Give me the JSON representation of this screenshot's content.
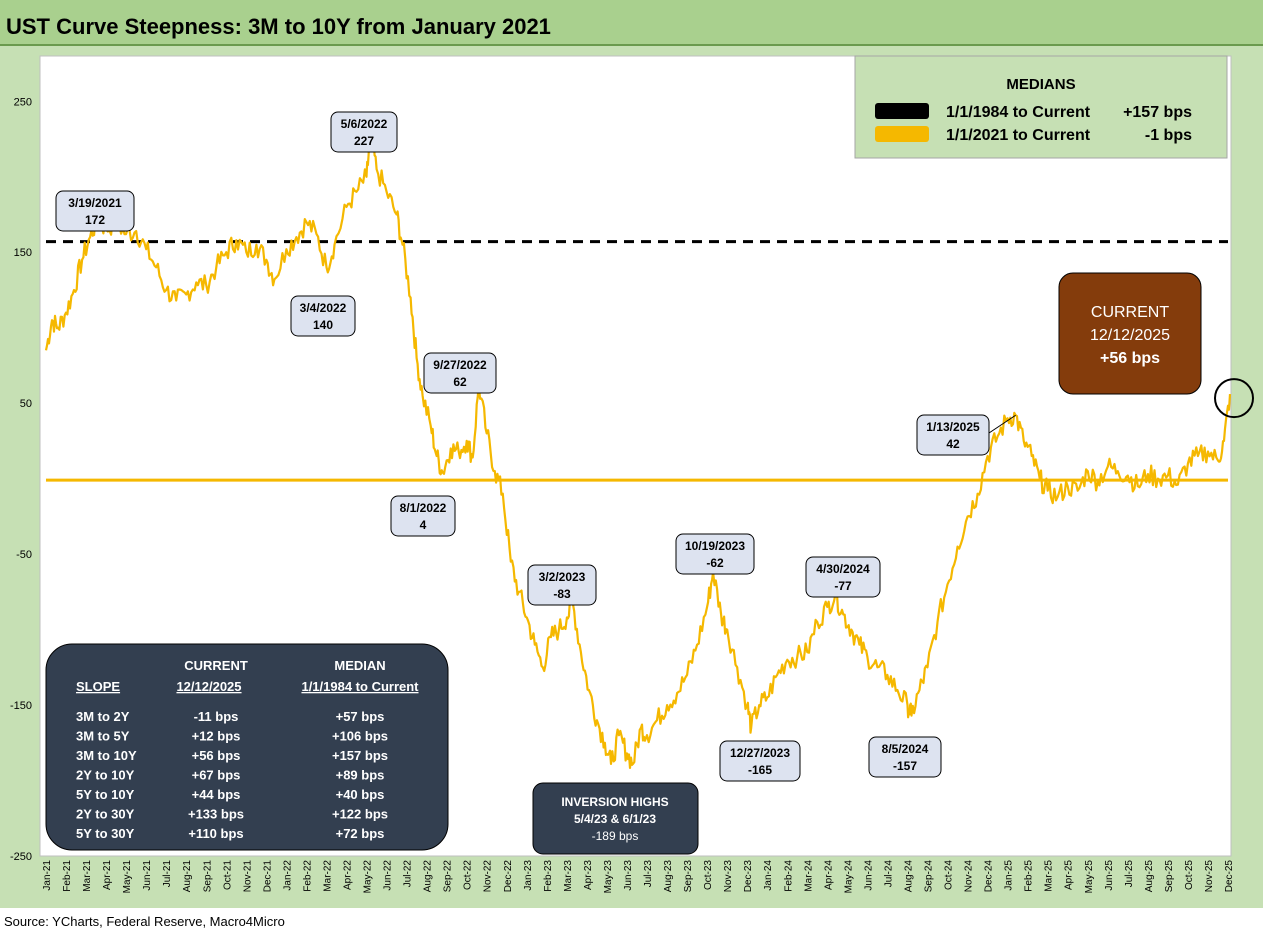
{
  "title": "UST Curve Steepness: 3M to 10Y from January 2021",
  "source": "Source: YCharts, Federal Reserve, Macro4Micro",
  "colors": {
    "series": "#f5b800",
    "median_2021": "#f5b800",
    "median_1984": "#000000",
    "panel": "#c6e0b4",
    "callout_fill": "#dde3f0",
    "current_box": "#843c0c",
    "dark_box": "#333f50"
  },
  "chart_data": {
    "type": "line",
    "ylim": [
      -250,
      280
    ],
    "yticks": [
      250,
      150,
      50,
      -50,
      -150,
      -250
    ],
    "x_months": [
      "Jan-21",
      "Feb-21",
      "Mar-21",
      "Apr-21",
      "May-21",
      "Jun-21",
      "Jul-21",
      "Aug-21",
      "Sep-21",
      "Oct-21",
      "Nov-21",
      "Dec-21",
      "Jan-22",
      "Feb-22",
      "Mar-22",
      "Apr-22",
      "May-22",
      "Jun-22",
      "Jul-22",
      "Aug-22",
      "Sep-22",
      "Oct-22",
      "Nov-22",
      "Dec-22",
      "Jan-23",
      "Feb-23",
      "Mar-23",
      "Apr-23",
      "May-23",
      "Jun-23",
      "Jul-23",
      "Aug-23",
      "Sep-23",
      "Oct-23",
      "Nov-23",
      "Dec-23",
      "Jan-24",
      "Feb-24",
      "Mar-24",
      "Apr-24",
      "May-24",
      "Jun-24",
      "Jul-24",
      "Aug-24",
      "Sep-24",
      "Oct-24",
      "Nov-24",
      "Dec-24",
      "Jan-25",
      "Feb-25",
      "Mar-25",
      "Apr-25",
      "May-25",
      "Jun-25",
      "Jul-25",
      "Aug-25",
      "Sep-25",
      "Oct-25",
      "Nov-25",
      "Dec-25"
    ],
    "series": [
      {
        "values": [
          [
            0,
            85
          ],
          [
            0.3,
            105
          ],
          [
            0.6,
            100
          ],
          [
            1,
            110
          ],
          [
            1.4,
            125
          ],
          [
            1.8,
            145
          ],
          [
            2.2,
            160
          ],
          [
            2.6,
            172
          ],
          [
            3,
            165
          ],
          [
            3.5,
            170
          ],
          [
            4,
            162
          ],
          [
            4.5,
            164
          ],
          [
            5,
            152
          ],
          [
            5.5,
            140
          ],
          [
            6,
            125
          ],
          [
            6.5,
            118
          ],
          [
            7,
            122
          ],
          [
            7.5,
            130
          ],
          [
            8,
            128
          ],
          [
            8.5,
            140
          ],
          [
            9,
            150
          ],
          [
            9.5,
            158
          ],
          [
            10,
            150
          ],
          [
            10.5,
            155
          ],
          [
            11,
            145
          ],
          [
            11.4,
            132
          ],
          [
            12,
            152
          ],
          [
            12.5,
            160
          ],
          [
            13,
            170
          ],
          [
            13.5,
            162
          ],
          [
            14,
            140
          ],
          [
            14.4,
            155
          ],
          [
            15,
            180
          ],
          [
            15.5,
            190
          ],
          [
            16,
            200
          ],
          [
            16.2,
            227
          ],
          [
            16.5,
            205
          ],
          [
            17,
            190
          ],
          [
            17.5,
            175
          ],
          [
            17.8,
            155
          ],
          [
            18.2,
            120
          ],
          [
            18.5,
            80
          ],
          [
            18.8,
            55
          ],
          [
            19.2,
            35
          ],
          [
            19.5,
            15
          ],
          [
            19.8,
            4
          ],
          [
            20.2,
            20
          ],
          [
            20.6,
            18
          ],
          [
            21,
            25
          ],
          [
            21.3,
            14
          ],
          [
            21.6,
            62
          ],
          [
            22,
            30
          ],
          [
            22.4,
            5
          ],
          [
            22.8,
            -10
          ],
          [
            23.2,
            -55
          ],
          [
            23.6,
            -75
          ],
          [
            24,
            -92
          ],
          [
            24.4,
            -110
          ],
          [
            24.8,
            -125
          ],
          [
            25.2,
            -105
          ],
          [
            25.6,
            -100
          ],
          [
            26,
            -92
          ],
          [
            26.3,
            -83
          ],
          [
            26.7,
            -115
          ],
          [
            27.1,
            -140
          ],
          [
            27.5,
            -160
          ],
          [
            27.9,
            -175
          ],
          [
            28.2,
            -189
          ],
          [
            28.6,
            -170
          ],
          [
            29,
            -182
          ],
          [
            29.3,
            -189
          ],
          [
            29.7,
            -165
          ],
          [
            30,
            -170
          ],
          [
            30.5,
            -160
          ],
          [
            31,
            -150
          ],
          [
            31.5,
            -142
          ],
          [
            32,
            -130
          ],
          [
            32.5,
            -110
          ],
          [
            33,
            -85
          ],
          [
            33.3,
            -62
          ],
          [
            33.7,
            -90
          ],
          [
            34,
            -100
          ],
          [
            34.5,
            -125
          ],
          [
            35,
            -150
          ],
          [
            35.2,
            -165
          ],
          [
            35.6,
            -150
          ],
          [
            36,
            -145
          ],
          [
            36.5,
            -130
          ],
          [
            37,
            -120
          ],
          [
            37.5,
            -118
          ],
          [
            38,
            -115
          ],
          [
            38.5,
            -95
          ],
          [
            39,
            -85
          ],
          [
            39.4,
            -77
          ],
          [
            39.8,
            -90
          ],
          [
            40.2,
            -100
          ],
          [
            40.6,
            -110
          ],
          [
            41,
            -118
          ],
          [
            41.5,
            -125
          ],
          [
            42,
            -130
          ],
          [
            42.5,
            -140
          ],
          [
            43,
            -150
          ],
          [
            43.2,
            -157
          ],
          [
            43.6,
            -140
          ],
          [
            44,
            -125
          ],
          [
            44.5,
            -95
          ],
          [
            45,
            -70
          ],
          [
            45.5,
            -45
          ],
          [
            46,
            -25
          ],
          [
            46.5,
            -10
          ],
          [
            47,
            15
          ],
          [
            47.5,
            28
          ],
          [
            48,
            40
          ],
          [
            48.4,
            42
          ],
          [
            48.8,
            25
          ],
          [
            49.2,
            15
          ],
          [
            49.6,
            0
          ],
          [
            50,
            -8
          ],
          [
            50.5,
            -12
          ],
          [
            51,
            -5
          ],
          [
            51.5,
            -8
          ],
          [
            52,
            5
          ],
          [
            52.5,
            -2
          ],
          [
            53,
            8
          ],
          [
            53.5,
            5
          ],
          [
            54,
            2
          ],
          [
            54.5,
            -5
          ],
          [
            55,
            3
          ],
          [
            55.5,
            0
          ],
          [
            56,
            2
          ],
          [
            56.5,
            -4
          ],
          [
            57,
            10
          ],
          [
            57.5,
            15
          ],
          [
            58,
            18
          ],
          [
            58.5,
            12
          ],
          [
            58.8,
            25
          ],
          [
            59.1,
            56
          ]
        ]
      }
    ],
    "median_lines": [
      {
        "name": "1/1/1984 to Current",
        "value": 157,
        "label_value": "+157 bps"
      },
      {
        "name": "1/1/2021 to Current",
        "value": -1,
        "label_value": "-1 bps"
      }
    ],
    "annotations": [
      {
        "date": "3/19/2021",
        "value": "172",
        "x": 2.6,
        "y": 172
      },
      {
        "date": "3/4/2022",
        "value": "140",
        "x": 14,
        "y": 140
      },
      {
        "date": "5/6/2022",
        "value": "227",
        "x": 16.2,
        "y": 227
      },
      {
        "date": "9/27/2022",
        "value": "62",
        "x": 21.6,
        "y": 62
      },
      {
        "date": "8/1/2022",
        "value": "4",
        "x": 19.8,
        "y": 4
      },
      {
        "date": "3/2/2023",
        "value": "-83",
        "x": 26.3,
        "y": -83
      },
      {
        "date": "10/19/2023",
        "value": "-62",
        "x": 33.3,
        "y": -62
      },
      {
        "date": "12/27/2023",
        "value": "-165",
        "x": 35.2,
        "y": -165
      },
      {
        "date": "4/30/2024",
        "value": "-77",
        "x": 39.4,
        "y": -77
      },
      {
        "date": "8/5/2024",
        "value": "-157",
        "x": 43.2,
        "y": -157
      },
      {
        "date": "1/13/2025",
        "value": "42",
        "x": 48.4,
        "y": 42
      }
    ]
  },
  "medians_legend": {
    "heading": "MEDIANS",
    "rows": [
      {
        "label": "1/1/1984 to Current",
        "value": "+157 bps"
      },
      {
        "label": "1/1/2021 to Current",
        "value": "-1 bps"
      }
    ]
  },
  "current_box": {
    "line1": "CURRENT",
    "line2": "12/12/2025",
    "line3": "+56 bps"
  },
  "inversion_box": {
    "line1": "INVERSION HIGHS",
    "line2": "5/4/23  & 6/1/23",
    "line3": "-189 bps"
  },
  "slope_table": {
    "headers": {
      "slope": "SLOPE",
      "current_top": "CURRENT",
      "current_bottom": "12/12/2025",
      "median_top": "MEDIAN",
      "median_bottom": "1/1/1984 to Current"
    },
    "rows": [
      {
        "slope": "3M to 2Y",
        "current": "-11 bps",
        "median": "+57 bps"
      },
      {
        "slope": "3M to 5Y",
        "current": "+12 bps",
        "median": "+106 bps"
      },
      {
        "slope": "3M to 10Y",
        "current": "+56 bps",
        "median": "+157 bps"
      },
      {
        "slope": "2Y to 10Y",
        "current": "+67 bps",
        "median": "+89 bps"
      },
      {
        "slope": "5Y to 10Y",
        "current": "+44 bps",
        "median": "+40 bps"
      },
      {
        "slope": "2Y to 30Y",
        "current": "+133 bps",
        "median": "+122 bps"
      },
      {
        "slope": "5Y to 30Y",
        "current": "+110 bps",
        "median": "+72 bps"
      }
    ]
  }
}
